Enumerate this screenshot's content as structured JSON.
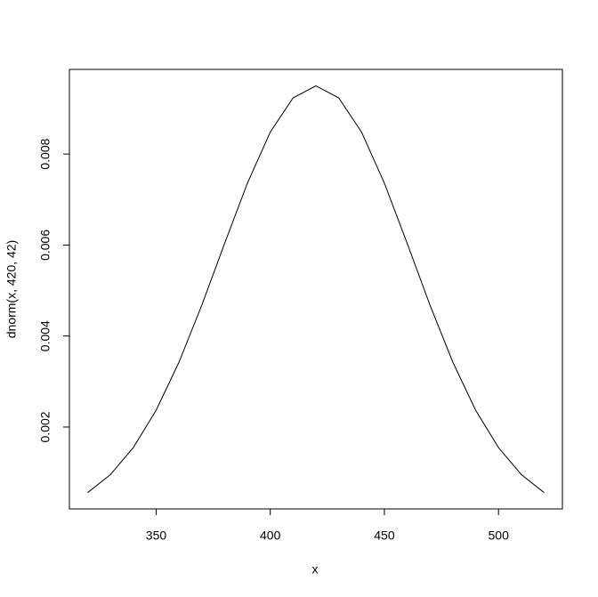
{
  "chart_data": {
    "type": "line",
    "x_label": "x",
    "y_label": "dnorm(x, 420, 42)",
    "x": [
      320,
      330,
      340,
      350,
      360,
      370,
      380,
      390,
      400,
      410,
      420,
      430,
      440,
      450,
      460,
      470,
      480,
      490,
      500,
      510,
      520
    ],
    "values": [
      0.000558,
      0.000956,
      0.001548,
      0.002369,
      0.003424,
      0.004677,
      0.006036,
      0.00736,
      0.008481,
      0.009234,
      0.009499,
      0.009234,
      0.008481,
      0.00736,
      0.006036,
      0.004677,
      0.003424,
      0.002369,
      0.001548,
      0.000956,
      0.000558
    ],
    "color": "#000000",
    "xlim": [
      312,
      528
    ],
    "xticks": [
      350,
      400,
      450,
      500
    ],
    "ylim": [
      0.0002,
      0.00986
    ],
    "yticks": [
      0.002,
      0.004,
      0.006,
      0.008
    ],
    "grid": false
  }
}
